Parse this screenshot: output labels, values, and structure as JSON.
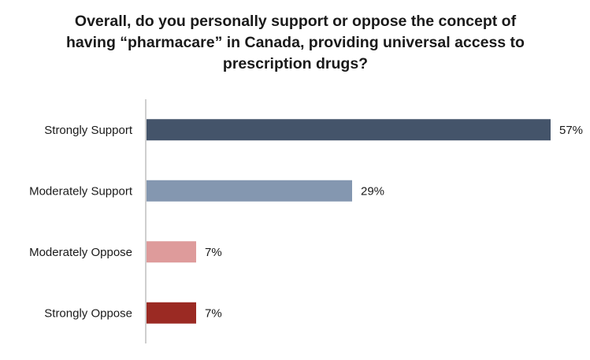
{
  "chart_data": {
    "type": "bar",
    "orientation": "horizontal",
    "title": [
      "Overall, do you personally support or oppose the concept of",
      "having “pharmacare” in Canada, providing universal access to",
      "prescription drugs?"
    ],
    "categories": [
      "Strongly Support",
      "Moderately Support",
      "Moderately Oppose",
      "Strongly Oppose"
    ],
    "values": [
      57,
      29,
      7,
      7
    ],
    "value_labels": [
      "57%",
      "29%",
      "7%",
      "7%"
    ],
    "colors": [
      "#44546a",
      "#8497b0",
      "#de9b9b",
      "#9b2a23"
    ],
    "xlim": [
      0,
      57
    ],
    "grid": false,
    "legend": "none"
  }
}
